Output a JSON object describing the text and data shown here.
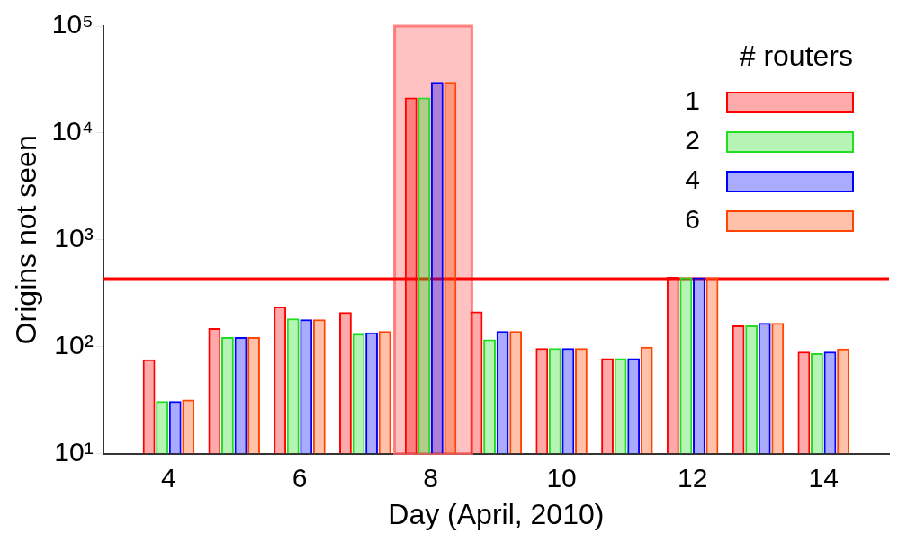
{
  "chart_data": {
    "type": "bar",
    "xlabel": "Day (April, 2010)",
    "ylabel": "Origins not seen",
    "legend_title": "# routers",
    "legend": "top right",
    "log": "y",
    "grid": false,
    "x": [
      4,
      5,
      6,
      7,
      8,
      9,
      10,
      11,
      12,
      13,
      14
    ],
    "xlim": [
      3,
      15
    ],
    "xticks": [
      4,
      6,
      8,
      10,
      12,
      14
    ],
    "ylim": [
      10,
      100000
    ],
    "yticks": [
      {
        "value": 10,
        "label": "10¹"
      },
      {
        "value": 100,
        "label": "10²"
      },
      {
        "value": 1000,
        "label": "10³"
      },
      {
        "value": 10000,
        "label": "10⁴"
      },
      {
        "value": 100000,
        "label": "10⁵"
      }
    ],
    "series": [
      {
        "name": "1",
        "color": "#ff0000",
        "values": [
          76,
          149,
          238,
          211,
          21400,
          214,
          97,
          78,
          450,
          158,
          90
        ]
      },
      {
        "name": "2",
        "color": "#22dd22",
        "values": [
          31,
          123,
          184,
          132,
          21400,
          117,
          97,
          78,
          445,
          158,
          87
        ]
      },
      {
        "name": "4",
        "color": "#0000ff",
        "values": [
          31,
          123,
          180,
          136,
          30000,
          140,
          97,
          78,
          445,
          167,
          90
        ]
      },
      {
        "name": "6",
        "color": "#ff4500",
        "values": [
          32,
          123,
          180,
          140,
          30000,
          140,
          97,
          100,
          445,
          167,
          96
        ]
      }
    ],
    "ref_lines": [
      {
        "axis": "y",
        "value": 430,
        "color": "#ff0000"
      }
    ],
    "bands": [
      {
        "axis": "x",
        "from": 7.45,
        "to": 8.63,
        "color": "#ff6666"
      }
    ]
  }
}
